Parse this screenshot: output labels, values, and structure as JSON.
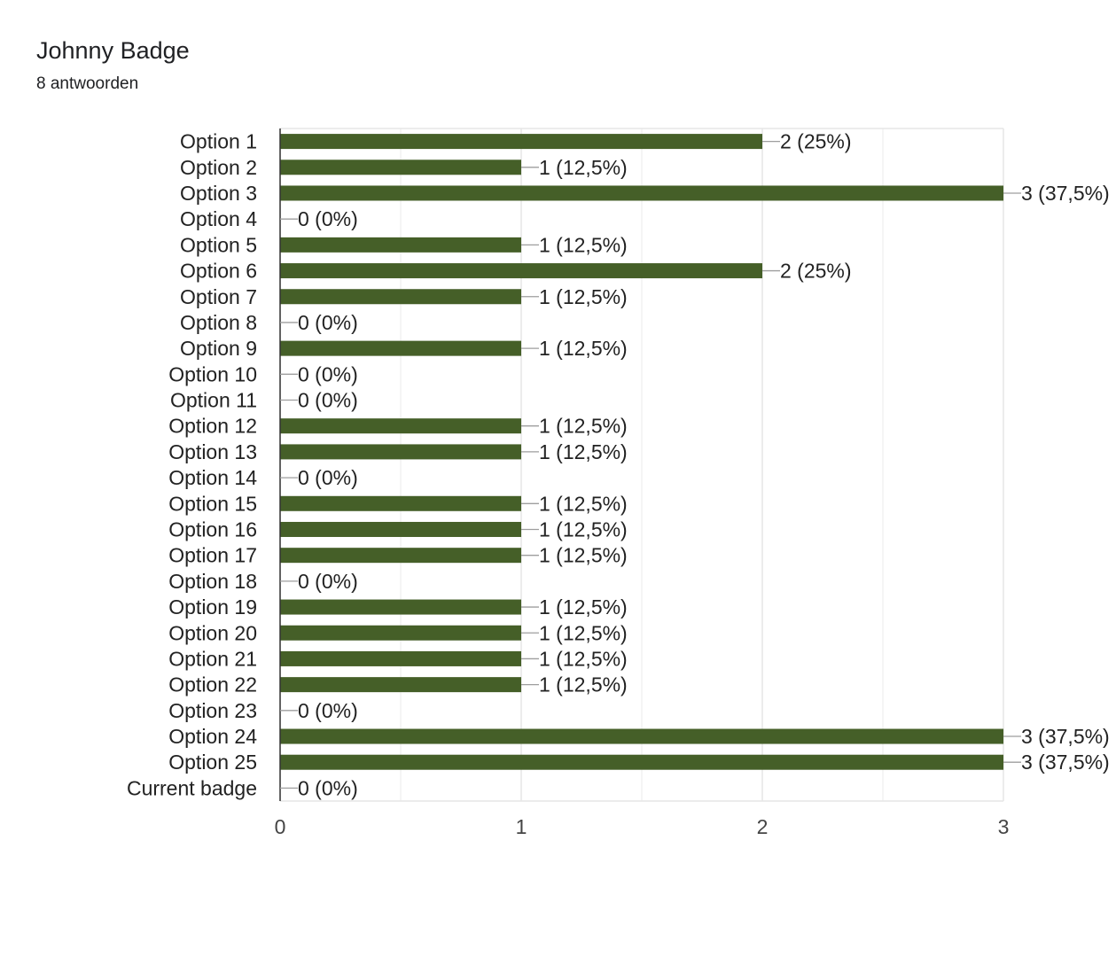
{
  "header": {
    "title": "Johnny Badge",
    "subtitle": "8 antwoorden"
  },
  "chart_data": {
    "type": "bar",
    "orientation": "horizontal",
    "title": "",
    "xlabel": "",
    "ylabel": "",
    "xlim": [
      0,
      3
    ],
    "x_ticks": [
      "0",
      "1",
      "2",
      "3"
    ],
    "grid": true,
    "bar_color": "#455f28",
    "categories": [
      "Option 1",
      "Option 2",
      "Option 3",
      "Option 4",
      "Option 5",
      "Option 6",
      "Option 7",
      "Option 8",
      "Option 9",
      "Option 10",
      "Option 11",
      "Option 12",
      "Option 13",
      "Option 14",
      "Option 15",
      "Option 16",
      "Option 17",
      "Option 18",
      "Option 19",
      "Option 20",
      "Option 21",
      "Option 22",
      "Option 23",
      "Option 24",
      "Option 25",
      "Current badge"
    ],
    "values": [
      2,
      1,
      3,
      0,
      1,
      2,
      1,
      0,
      1,
      0,
      0,
      1,
      1,
      0,
      1,
      1,
      1,
      0,
      1,
      1,
      1,
      1,
      0,
      3,
      3,
      0
    ],
    "data_labels": [
      "2 (25%)",
      "1 (12,5%)",
      "3 (37,5%)",
      "0 (0%)",
      "1 (12,5%)",
      "2 (25%)",
      "1 (12,5%)",
      "0 (0%)",
      "1 (12,5%)",
      "0 (0%)",
      "0 (0%)",
      "1 (12,5%)",
      "1 (12,5%)",
      "0 (0%)",
      "1 (12,5%)",
      "1 (12,5%)",
      "1 (12,5%)",
      "0 (0%)",
      "1 (12,5%)",
      "1 (12,5%)",
      "1 (12,5%)",
      "1 (12,5%)",
      "0 (0%)",
      "3 (37,5%)",
      "3 (37,5%)",
      "0 (0%)"
    ]
  }
}
